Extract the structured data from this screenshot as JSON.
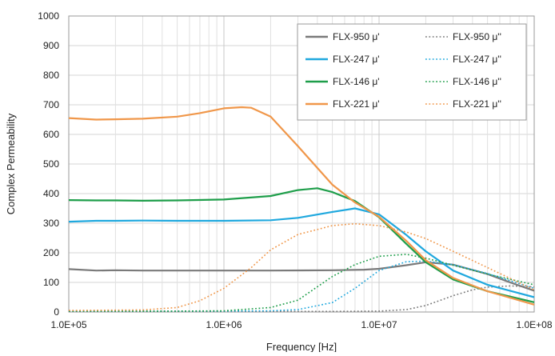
{
  "chart_data": {
    "type": "line",
    "xlabel": "Frequency [Hz]",
    "ylabel": "Complex Permeability",
    "x_scale": "log",
    "xlim": [
      100000,
      100000000
    ],
    "ylim": [
      0,
      1000
    ],
    "x_ticks": [
      100000,
      1000000,
      10000000,
      100000000
    ],
    "x_tick_labels": [
      "1.0E+05",
      "1.0E+06",
      "1.0E+07",
      "1.0E+08"
    ],
    "y_ticks": [
      0,
      100,
      200,
      300,
      400,
      500,
      600,
      700,
      800,
      900,
      1000
    ],
    "y_tick_labels": [
      "0",
      "100",
      "200",
      "300",
      "400",
      "500",
      "600",
      "700",
      "800",
      "900",
      "1000"
    ],
    "grid": true,
    "legend_position": "top-right",
    "series": [
      {
        "name": "FLX-950 μ'",
        "color": "#7a7a7a",
        "style": "solid",
        "x": [
          100000,
          150000,
          200000,
          300000,
          500000,
          1000000,
          2000000,
          5000000,
          8000000,
          10000000,
          15000000,
          20000000,
          30000000,
          50000000,
          70000000,
          100000000
        ],
        "y": [
          145,
          140,
          141,
          140,
          140,
          140,
          140,
          141,
          143,
          146,
          158,
          168,
          160,
          128,
          100,
          72
        ]
      },
      {
        "name": "FLX-950 μ''",
        "color": "#7a7a7a",
        "style": "dotted",
        "x": [
          100000,
          1000000,
          5000000,
          10000000,
          15000000,
          20000000,
          30000000,
          40000000,
          50000000,
          70000000,
          100000000
        ],
        "y": [
          2,
          2,
          2,
          3,
          8,
          22,
          55,
          75,
          84,
          88,
          85
        ]
      },
      {
        "name": "FLX-247 μ'",
        "color": "#1fa8de",
        "style": "solid",
        "x": [
          100000,
          150000,
          200000,
          300000,
          500000,
          1000000,
          2000000,
          3000000,
          5000000,
          7000000,
          10000000,
          15000000,
          20000000,
          30000000,
          50000000,
          100000000
        ],
        "y": [
          305,
          308,
          308,
          309,
          308,
          308,
          310,
          318,
          338,
          350,
          330,
          260,
          205,
          140,
          92,
          50
        ]
      },
      {
        "name": "FLX-247 μ''",
        "color": "#1fa8de",
        "style": "dotted",
        "x": [
          100000,
          1000000,
          2000000,
          3000000,
          5000000,
          7000000,
          10000000,
          15000000,
          20000000,
          30000000,
          50000000,
          100000000
        ],
        "y": [
          3,
          3,
          4,
          8,
          32,
          80,
          140,
          170,
          172,
          160,
          130,
          80
        ]
      },
      {
        "name": "FLX-146 μ'",
        "color": "#1e9e4a",
        "style": "solid",
        "x": [
          100000,
          150000,
          200000,
          300000,
          500000,
          1000000,
          2000000,
          3000000,
          4000000,
          5000000,
          7000000,
          10000000,
          15000000,
          20000000,
          30000000,
          50000000,
          100000000
        ],
        "y": [
          378,
          377,
          377,
          376,
          377,
          380,
          392,
          412,
          418,
          405,
          375,
          320,
          230,
          168,
          110,
          70,
          33
        ]
      },
      {
        "name": "FLX-146 μ''",
        "color": "#1e9e4a",
        "style": "dotted",
        "x": [
          100000,
          500000,
          1000000,
          2000000,
          3000000,
          5000000,
          7000000,
          10000000,
          15000000,
          20000000,
          30000000,
          50000000,
          100000000
        ],
        "y": [
          3,
          3,
          4,
          15,
          40,
          120,
          160,
          188,
          195,
          182,
          158,
          128,
          92
        ]
      },
      {
        "name": "FLX-221 μ'",
        "color": "#f0974a",
        "style": "solid",
        "x": [
          100000,
          150000,
          200000,
          300000,
          500000,
          700000,
          1000000,
          1300000,
          1500000,
          2000000,
          3000000,
          5000000,
          7000000,
          10000000,
          15000000,
          20000000,
          30000000,
          50000000,
          100000000
        ],
        "y": [
          655,
          650,
          651,
          653,
          660,
          672,
          688,
          692,
          690,
          660,
          560,
          430,
          370,
          322,
          240,
          175,
          115,
          70,
          25
        ]
      },
      {
        "name": "FLX-221 μ''",
        "color": "#f0974a",
        "style": "dotted",
        "x": [
          100000,
          300000,
          500000,
          700000,
          1000000,
          1500000,
          2000000,
          3000000,
          5000000,
          7000000,
          10000000,
          15000000,
          20000000,
          30000000,
          50000000,
          100000000
        ],
        "y": [
          5,
          7,
          15,
          38,
          80,
          150,
          210,
          262,
          292,
          298,
          292,
          270,
          248,
          205,
          150,
          75
        ]
      }
    ]
  }
}
